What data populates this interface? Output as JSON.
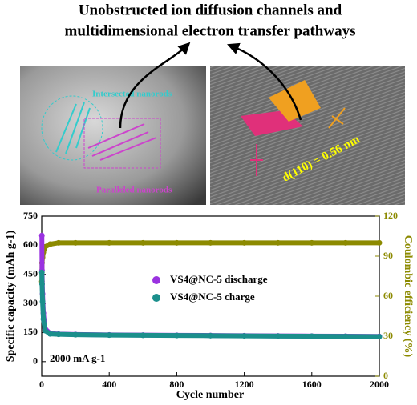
{
  "figure": {
    "title_lines": [
      "Unobstructed ion diffusion channels and",
      "multidimensional electron transfer pathways"
    ],
    "left_image_labels": [
      "Intersected nanorods",
      "Paralleled nanorods"
    ],
    "right_image_label": "d(110) = 0.56 nm"
  },
  "chart_data": {
    "type": "scatter",
    "x": [
      1,
      2,
      5,
      10,
      20,
      50,
      100,
      200,
      400,
      600,
      800,
      1000,
      1200,
      1400,
      1600,
      1800,
      2000
    ],
    "series": [
      {
        "name": "VS4@NC-5 discharge",
        "color": "#9a32e0",
        "values": [
          650,
          470,
          350,
          250,
          170,
          145,
          142,
          140,
          138,
          137,
          136,
          135,
          134,
          133,
          132,
          131,
          130
        ]
      },
      {
        "name": "VS4@NC-5 charge",
        "color": "#1b8f8c",
        "values": [
          460,
          400,
          310,
          220,
          160,
          143,
          141,
          139,
          137,
          136,
          135,
          134,
          133,
          132,
          131,
          130,
          129
        ]
      },
      {
        "name": "Coulombic efficiency",
        "color": "#8c8a00",
        "axis": "y2",
        "values": [
          71,
          85,
          89,
          93,
          97,
          99,
          100,
          100,
          100,
          100,
          100,
          100,
          100,
          100,
          100,
          100,
          100
        ]
      }
    ],
    "xlabel": "Cycle number",
    "ylabel": "Specific capacity (mAh g-1)",
    "y2label": "Coulombic efficiency (%)",
    "annotation": "2000 mA g-1",
    "xlim": [
      0,
      2000
    ],
    "xticks": [
      0,
      400,
      800,
      1200,
      1600,
      2000
    ],
    "ylim": [
      -75,
      750
    ],
    "yticks": [
      0,
      150,
      300,
      450,
      600,
      750
    ],
    "y2lim": [
      0,
      120
    ],
    "y2ticks": [
      0,
      30,
      60,
      90,
      120
    ]
  }
}
